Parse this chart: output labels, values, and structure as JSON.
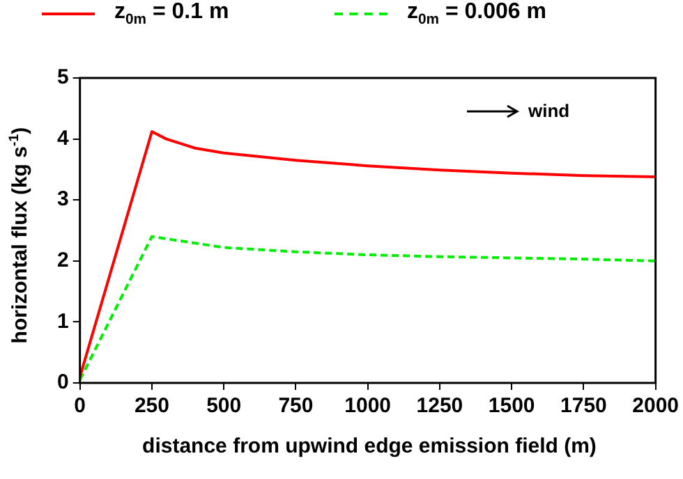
{
  "chart_data": {
    "type": "line",
    "xlabel": "distance from upwind edge emission field (m)",
    "ylabel": "horizontal flux (kg s$^{-1}$)",
    "annotations": [
      "wind"
    ],
    "legend": "top",
    "grid": false,
    "marker": "none",
    "xlim": [
      0,
      2000
    ],
    "xticks": [
      0,
      250,
      500,
      750,
      1000,
      1250,
      1500,
      1750,
      2000
    ],
    "ylim": [
      0,
      5
    ],
    "yticks": [
      0,
      1,
      2,
      3,
      4,
      5
    ],
    "series": [
      {
        "name": "z$_{0m}$ = 0.1 m",
        "color": "#ff0000",
        "line_style": "solid",
        "x": [
          0,
          250,
          300,
          400,
          500,
          750,
          1000,
          1250,
          1500,
          1750,
          2000
        ],
        "values": [
          0.1,
          4.12,
          4.0,
          3.85,
          3.77,
          3.65,
          3.56,
          3.49,
          3.44,
          3.4,
          3.38
        ]
      },
      {
        "name": "z$_{0m}$ = 0.006 m",
        "color": "#00ee00",
        "line_style": "dashed",
        "x": [
          0,
          250,
          500,
          750,
          1000,
          1250,
          1500,
          1750,
          2000
        ],
        "values": [
          0.05,
          2.4,
          2.22,
          2.15,
          2.1,
          2.07,
          2.05,
          2.03,
          2.0
        ]
      }
    ]
  }
}
